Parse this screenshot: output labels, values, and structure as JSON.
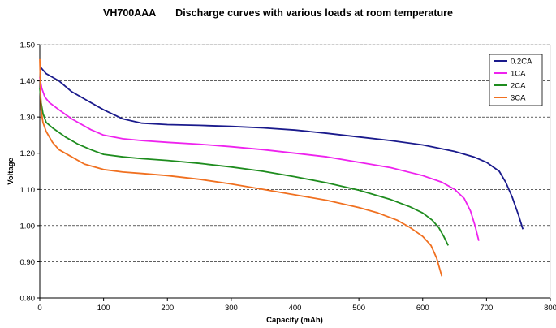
{
  "chart_data": {
    "type": "line",
    "title": "VH700AAA       Discharge curves with various loads at room temperature",
    "xlabel": "Capacity (mAh)",
    "ylabel": "Voltage",
    "xlim": [
      0,
      800
    ],
    "ylim": [
      0.8,
      1.5
    ],
    "xticks": [
      0,
      100,
      200,
      300,
      400,
      500,
      600,
      700,
      800
    ],
    "yticks": [
      0.8,
      0.9,
      1.0,
      1.1,
      1.2,
      1.3,
      1.4,
      1.5
    ],
    "ytick_labels": [
      "0.80",
      "0.90",
      "1.00",
      "1.10",
      "1.20",
      "1.30",
      "1.40",
      "1.50"
    ],
    "xtick_labels": [
      "0",
      "100",
      "200",
      "300",
      "400",
      "500",
      "600",
      "700",
      "800"
    ],
    "grid": "horizontal dashed",
    "legend_position": "top-right",
    "series": [
      {
        "name": "0.2CA",
        "color": "#1a1a8c",
        "points": [
          [
            0,
            1.44
          ],
          [
            5,
            1.43
          ],
          [
            10,
            1.42
          ],
          [
            20,
            1.41
          ],
          [
            30,
            1.4
          ],
          [
            50,
            1.37
          ],
          [
            70,
            1.35
          ],
          [
            100,
            1.32
          ],
          [
            130,
            1.295
          ],
          [
            160,
            1.283
          ],
          [
            200,
            1.279
          ],
          [
            250,
            1.277
          ],
          [
            300,
            1.274
          ],
          [
            350,
            1.27
          ],
          [
            400,
            1.264
          ],
          [
            450,
            1.255
          ],
          [
            500,
            1.245
          ],
          [
            550,
            1.235
          ],
          [
            600,
            1.223
          ],
          [
            650,
            1.205
          ],
          [
            680,
            1.19
          ],
          [
            700,
            1.175
          ],
          [
            720,
            1.15
          ],
          [
            730,
            1.12
          ],
          [
            740,
            1.08
          ],
          [
            750,
            1.03
          ],
          [
            757,
            0.99
          ]
        ]
      },
      {
        "name": "1CA",
        "color": "#ee22ee",
        "points": [
          [
            0,
            1.41
          ],
          [
            3,
            1.38
          ],
          [
            8,
            1.355
          ],
          [
            15,
            1.34
          ],
          [
            30,
            1.32
          ],
          [
            50,
            1.295
          ],
          [
            80,
            1.265
          ],
          [
            100,
            1.25
          ],
          [
            130,
            1.24
          ],
          [
            160,
            1.235
          ],
          [
            200,
            1.23
          ],
          [
            250,
            1.225
          ],
          [
            300,
            1.218
          ],
          [
            350,
            1.21
          ],
          [
            400,
            1.2
          ],
          [
            450,
            1.19
          ],
          [
            500,
            1.175
          ],
          [
            550,
            1.16
          ],
          [
            600,
            1.138
          ],
          [
            630,
            1.12
          ],
          [
            650,
            1.1
          ],
          [
            665,
            1.075
          ],
          [
            675,
            1.04
          ],
          [
            682,
            1.0
          ],
          [
            688,
            0.958
          ]
        ]
      },
      {
        "name": "2CA",
        "color": "#1e8c1e",
        "points": [
          [
            0,
            1.38
          ],
          [
            2,
            1.34
          ],
          [
            5,
            1.31
          ],
          [
            10,
            1.285
          ],
          [
            20,
            1.27
          ],
          [
            40,
            1.245
          ],
          [
            60,
            1.225
          ],
          [
            80,
            1.21
          ],
          [
            100,
            1.197
          ],
          [
            130,
            1.19
          ],
          [
            160,
            1.185
          ],
          [
            200,
            1.18
          ],
          [
            250,
            1.172
          ],
          [
            300,
            1.162
          ],
          [
            350,
            1.15
          ],
          [
            400,
            1.135
          ],
          [
            450,
            1.118
          ],
          [
            500,
            1.098
          ],
          [
            550,
            1.072
          ],
          [
            580,
            1.052
          ],
          [
            600,
            1.035
          ],
          [
            615,
            1.015
          ],
          [
            625,
            0.995
          ],
          [
            633,
            0.97
          ],
          [
            640,
            0.945
          ]
        ]
      },
      {
        "name": "3CA",
        "color": "#f07020",
        "points": [
          [
            0,
            1.46
          ],
          [
            2,
            1.32
          ],
          [
            5,
            1.285
          ],
          [
            10,
            1.26
          ],
          [
            20,
            1.23
          ],
          [
            30,
            1.21
          ],
          [
            50,
            1.19
          ],
          [
            70,
            1.17
          ],
          [
            100,
            1.155
          ],
          [
            130,
            1.148
          ],
          [
            160,
            1.144
          ],
          [
            200,
            1.138
          ],
          [
            250,
            1.128
          ],
          [
            300,
            1.115
          ],
          [
            350,
            1.1
          ],
          [
            400,
            1.085
          ],
          [
            450,
            1.07
          ],
          [
            500,
            1.05
          ],
          [
            530,
            1.035
          ],
          [
            560,
            1.015
          ],
          [
            580,
            0.995
          ],
          [
            600,
            0.97
          ],
          [
            613,
            0.945
          ],
          [
            622,
            0.91
          ],
          [
            630,
            0.86
          ]
        ]
      }
    ]
  }
}
